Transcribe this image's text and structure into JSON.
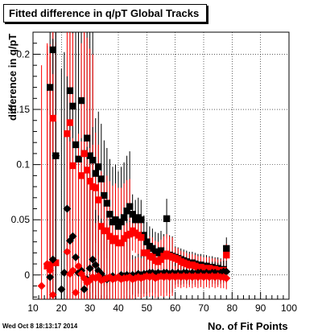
{
  "chart_data": {
    "type": "scatter",
    "title": "Fitted difference in q/pT  Global Tracks",
    "xlabel": "No. of Fit Points",
    "ylabel": "difference in q/pT",
    "footer": "Wed Oct  8 18:13:17 2014",
    "xlim": [
      10,
      100
    ],
    "ylim": [
      -0.022,
      0.22
    ],
    "xticks": [
      10,
      20,
      30,
      40,
      50,
      60,
      70,
      80,
      90,
      100
    ],
    "yticks": [
      0,
      0.05,
      0.1,
      0.15,
      0.2
    ],
    "ytick_labels": [
      "0",
      "0.05",
      "0.1",
      "0.15",
      "0.2"
    ],
    "grid": true,
    "colors": {
      "black_series": "#000000",
      "red_series": "#ff0000"
    },
    "series": [
      {
        "marker": "square",
        "color": "#000000",
        "points": [
          [
            16,
            0.17
          ],
          [
            17,
            0.204
          ],
          [
            18,
            0.108
          ],
          [
            23,
            0.167
          ],
          [
            24,
            0.153
          ],
          [
            25,
            0.118
          ],
          [
            26,
            0.105
          ],
          [
            27,
            0.158
          ],
          [
            28,
            0.11
          ],
          [
            29,
            0.124
          ],
          [
            30,
            0.108
          ],
          [
            31,
            0.104
          ],
          [
            32,
            0.092
          ],
          [
            33,
            0.098
          ],
          [
            34,
            0.087
          ],
          [
            35,
            0.072
          ],
          [
            36,
            0.065
          ],
          [
            37,
            0.055
          ],
          [
            38,
            0.048
          ],
          [
            39,
            0.05
          ],
          [
            40,
            0.044
          ],
          [
            41,
            0.048
          ],
          [
            42,
            0.052
          ],
          [
            43,
            0.058
          ],
          [
            44,
            0.062
          ],
          [
            45,
            0.055
          ],
          [
            46,
            0.05
          ],
          [
            47,
            0.052
          ],
          [
            48,
            0.05
          ],
          [
            49,
            0.036
          ],
          [
            50,
            0.03
          ],
          [
            51,
            0.026
          ],
          [
            52,
            0.024
          ],
          [
            53,
            0.021
          ],
          [
            54,
            0.02
          ],
          [
            55,
            0.022
          ],
          [
            56,
            0.019
          ],
          [
            57,
            0.051
          ],
          [
            58,
            0.018
          ],
          [
            59,
            0.017
          ],
          [
            60,
            0.016
          ],
          [
            61,
            0.015
          ],
          [
            62,
            0.014
          ],
          [
            63,
            0.013
          ],
          [
            64,
            0.012
          ],
          [
            65,
            0.011
          ],
          [
            66,
            0.011
          ],
          [
            67,
            0.01
          ],
          [
            68,
            0.009
          ],
          [
            69,
            0.009
          ],
          [
            70,
            0.008
          ],
          [
            71,
            0.008
          ],
          [
            72,
            0.007
          ],
          [
            73,
            0.007
          ],
          [
            74,
            0.006
          ],
          [
            75,
            0.006
          ],
          [
            76,
            0.005
          ],
          [
            77,
            0.005
          ],
          [
            78,
            0.024
          ]
        ]
      },
      {
        "marker": "square",
        "color": "#ff0000",
        "points": [
          [
            15,
            0.008
          ],
          [
            16,
            0.009
          ],
          [
            17,
            0.142
          ],
          [
            18,
            0.011
          ],
          [
            22,
            0.128
          ],
          [
            23,
            0.138
          ],
          [
            24,
            0.099
          ],
          [
            27,
            0.09
          ],
          [
            28,
            0.11
          ],
          [
            29,
            0.095
          ],
          [
            30,
            0.085
          ],
          [
            31,
            0.08
          ],
          [
            32,
            0.079
          ],
          [
            33,
            0.068
          ],
          [
            34,
            0.044
          ],
          [
            35,
            0.04
          ],
          [
            36,
            0.04
          ],
          [
            37,
            0.035
          ],
          [
            38,
            0.031
          ],
          [
            39,
            0.033
          ],
          [
            40,
            0.029
          ],
          [
            41,
            0.029
          ],
          [
            42,
            0.033
          ],
          [
            43,
            0.036
          ],
          [
            44,
            0.037
          ],
          [
            45,
            0.04
          ],
          [
            46,
            0.038
          ],
          [
            47,
            0.036
          ],
          [
            48,
            0.034
          ],
          [
            49,
            0.02
          ],
          [
            50,
            0.02
          ],
          [
            51,
            0.017
          ],
          [
            52,
            0.016
          ],
          [
            53,
            0.013
          ],
          [
            54,
            0.012
          ],
          [
            55,
            0.014
          ],
          [
            56,
            0.017
          ],
          [
            57,
            0.019
          ],
          [
            58,
            0.017
          ],
          [
            59,
            0.016
          ],
          [
            60,
            0.015
          ],
          [
            61,
            0.014
          ],
          [
            62,
            0.012
          ],
          [
            63,
            0.011
          ],
          [
            64,
            0.01
          ],
          [
            65,
            0.009
          ],
          [
            66,
            0.009
          ],
          [
            67,
            0.008
          ],
          [
            68,
            0.007
          ],
          [
            69,
            0.007
          ],
          [
            70,
            0.006
          ],
          [
            71,
            0.006
          ],
          [
            72,
            0.006
          ],
          [
            73,
            0.005
          ],
          [
            74,
            0.005
          ],
          [
            75,
            0.004
          ],
          [
            76,
            0.004
          ],
          [
            77,
            0.004
          ],
          [
            78,
            0.018
          ]
        ]
      },
      {
        "marker": "diamond",
        "color": "#000000",
        "points": [
          [
            16,
            -0.002
          ],
          [
            17,
            0.014
          ],
          [
            18,
            0.108
          ],
          [
            20,
            -0.013
          ],
          [
            21,
            0.002
          ],
          [
            22,
            0.06
          ],
          [
            23,
            0.031
          ],
          [
            24,
            0.035
          ],
          [
            25,
            0.016
          ],
          [
            26,
            0.002
          ],
          [
            27,
            0.004
          ],
          [
            28,
            -0.013
          ],
          [
            29,
            -0.004
          ],
          [
            30,
            0.006
          ],
          [
            31,
            0.014
          ],
          [
            32,
            0.009
          ],
          [
            33,
            0.004
          ],
          [
            34,
            0.001
          ],
          [
            35,
            -0.003
          ],
          [
            36,
            -0.004
          ],
          [
            37,
            -0.002
          ],
          [
            38,
            -0.001
          ],
          [
            39,
            -0.003
          ],
          [
            40,
            -0.002
          ],
          [
            41,
            0.0
          ],
          [
            42,
            -0.001
          ],
          [
            43,
            0.0
          ],
          [
            44,
            -0.001
          ],
          [
            45,
            0.0
          ],
          [
            46,
            -0.001
          ],
          [
            47,
            0.001
          ],
          [
            48,
            0.0
          ],
          [
            49,
            0.001
          ],
          [
            50,
            0.001
          ],
          [
            51,
            0.002
          ],
          [
            52,
            0.002
          ],
          [
            53,
            0.001
          ],
          [
            54,
            0.002
          ],
          [
            55,
            0.001
          ],
          [
            56,
            0.002
          ],
          [
            57,
            0.002
          ],
          [
            58,
            0.001
          ],
          [
            59,
            0.002
          ],
          [
            60,
            0.001
          ],
          [
            61,
            0.002
          ],
          [
            62,
            0.001
          ],
          [
            63,
            0.002
          ],
          [
            64,
            0.002
          ],
          [
            65,
            0.001
          ],
          [
            66,
            0.002
          ],
          [
            67,
            0.001
          ],
          [
            68,
            0.002
          ],
          [
            69,
            0.002
          ],
          [
            70,
            0.001
          ],
          [
            71,
            0.002
          ],
          [
            72,
            0.001
          ],
          [
            73,
            0.002
          ],
          [
            74,
            0.002
          ],
          [
            75,
            0.001
          ],
          [
            76,
            0.002
          ],
          [
            77,
            0.003
          ],
          [
            78,
            0.003
          ]
        ]
      },
      {
        "marker": "diamond",
        "color": "#ff0000",
        "points": [
          [
            13,
            -0.01
          ],
          [
            15,
            0.01
          ],
          [
            16,
            0.004
          ],
          [
            17,
            -0.018
          ],
          [
            22,
            0.021
          ],
          [
            23,
            0.001
          ],
          [
            24,
            0.004
          ],
          [
            25,
            -0.016
          ],
          [
            26,
            0.008
          ],
          [
            27,
            0.001
          ],
          [
            28,
            -0.003
          ],
          [
            29,
            -0.007
          ],
          [
            30,
            -0.005
          ],
          [
            31,
            -0.002
          ],
          [
            32,
            -0.003
          ],
          [
            33,
            -0.001
          ],
          [
            34,
            -0.005
          ],
          [
            35,
            -0.004
          ],
          [
            36,
            -0.003
          ],
          [
            37,
            -0.002
          ],
          [
            38,
            -0.004
          ],
          [
            39,
            -0.003
          ],
          [
            40,
            -0.002
          ],
          [
            41,
            -0.004
          ],
          [
            42,
            -0.003
          ],
          [
            43,
            -0.003
          ],
          [
            44,
            -0.002
          ],
          [
            45,
            -0.004
          ],
          [
            46,
            -0.003
          ],
          [
            47,
            -0.002
          ],
          [
            48,
            -0.003
          ],
          [
            49,
            -0.002
          ],
          [
            50,
            -0.001
          ],
          [
            51,
            -0.002
          ],
          [
            52,
            -0.001
          ],
          [
            53,
            -0.003
          ],
          [
            54,
            -0.002
          ],
          [
            55,
            -0.001
          ],
          [
            56,
            -0.002
          ],
          [
            57,
            -0.001
          ],
          [
            58,
            -0.002
          ],
          [
            59,
            -0.001
          ],
          [
            60,
            -0.002
          ],
          [
            61,
            -0.001
          ],
          [
            62,
            -0.002
          ],
          [
            63,
            -0.001
          ],
          [
            64,
            -0.002
          ],
          [
            65,
            -0.001
          ],
          [
            66,
            -0.002
          ],
          [
            67,
            -0.001
          ],
          [
            68,
            -0.002
          ],
          [
            69,
            -0.001
          ],
          [
            70,
            -0.002
          ],
          [
            71,
            -0.001
          ],
          [
            72,
            -0.002
          ],
          [
            73,
            -0.001
          ],
          [
            74,
            -0.002
          ],
          [
            75,
            -0.001
          ],
          [
            76,
            -0.002
          ],
          [
            77,
            -0.002
          ],
          [
            78,
            -0.003
          ]
        ]
      }
    ]
  }
}
